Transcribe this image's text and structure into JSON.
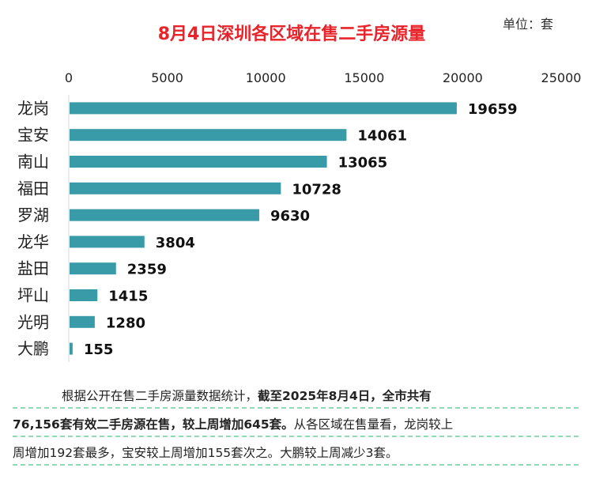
{
  "unit_label": "单位：套",
  "chart_data": {
    "type": "bar",
    "orientation": "horizontal",
    "title": "8月4日深圳各区域在售二手房源量",
    "categories": [
      "龙岗",
      "宝安",
      "南山",
      "福田",
      "罗湖",
      "龙华",
      "盐田",
      "坪山",
      "光明",
      "大鹏"
    ],
    "values": [
      19659,
      14061,
      13065,
      10728,
      9630,
      3804,
      2359,
      1415,
      1280,
      155
    ],
    "xlim": [
      0,
      25000
    ],
    "x_ticks": [
      "0",
      "5000",
      "10000",
      "15000",
      "20000",
      "25000"
    ],
    "x_axis_position": "top",
    "bar_color": "#3a9ba8",
    "title_color": "#e8232a",
    "grid": false
  },
  "summary": {
    "line1_normal": "根据公开在售二手房源量数据统计，",
    "line1_bold": "截至2025年8月4日，全市共有",
    "line2_bold": "76,156套有效二手房源在售，较上周增加645套。",
    "line2_normal": "从各区域在售量看，龙岗较上",
    "line3_normal": "周增加192套最多，宝安较上周增加155套次之。大鹏较上周减少3套。"
  }
}
